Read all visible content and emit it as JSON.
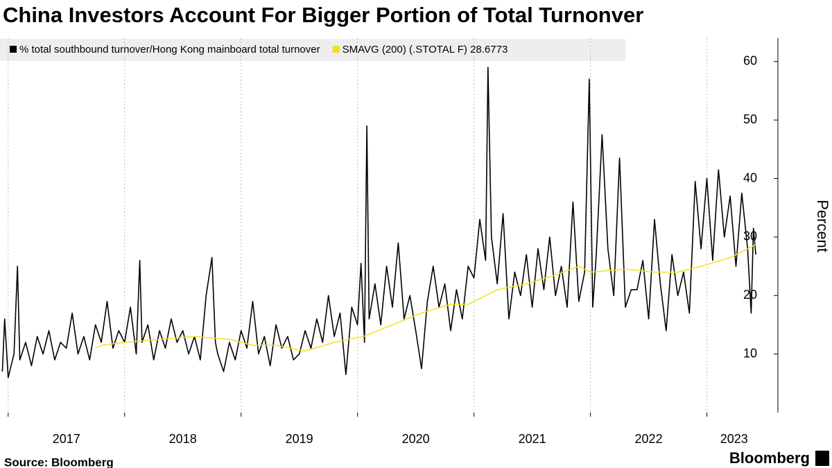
{
  "chart_data": {
    "type": "line",
    "title": "China Investors Account For Bigger Portion of Total Turnonver",
    "ylabel": "Percent",
    "source": "Source: Bloomberg",
    "brand": "Bloomberg",
    "xlim": [
      2016.93,
      2023.61
    ],
    "xticks": [
      {
        "value": 2017,
        "label": "2017"
      },
      {
        "value": 2018,
        "label": "2018"
      },
      {
        "value": 2019,
        "label": "2019"
      },
      {
        "value": 2020,
        "label": "2020"
      },
      {
        "value": 2021,
        "label": "2021"
      },
      {
        "value": 2022,
        "label": "2022"
      },
      {
        "value": 2023,
        "label": "2023"
      }
    ],
    "ylim": [
      0,
      64
    ],
    "yticks": [
      10,
      20,
      30,
      40,
      50,
      60
    ],
    "grid": true,
    "series": [
      {
        "name": "% total southbound turnover/Hong Kong mainboard total turnover",
        "color": "#000000",
        "x": [
          2016.95,
          2016.97,
          2017.0,
          2017.05,
          2017.08,
          2017.1,
          2017.15,
          2017.2,
          2017.25,
          2017.3,
          2017.35,
          2017.4,
          2017.45,
          2017.5,
          2017.55,
          2017.6,
          2017.65,
          2017.7,
          2017.75,
          2017.8,
          2017.85,
          2017.9,
          2017.95,
          2018.0,
          2018.05,
          2018.1,
          2018.13,
          2018.15,
          2018.2,
          2018.25,
          2018.3,
          2018.35,
          2018.4,
          2018.45,
          2018.5,
          2018.55,
          2018.6,
          2018.65,
          2018.7,
          2018.75,
          2018.78,
          2018.8,
          2018.85,
          2018.9,
          2018.95,
          2019.0,
          2019.05,
          2019.1,
          2019.15,
          2019.2,
          2019.25,
          2019.3,
          2019.35,
          2019.4,
          2019.45,
          2019.5,
          2019.55,
          2019.6,
          2019.65,
          2019.7,
          2019.75,
          2019.8,
          2019.85,
          2019.9,
          2019.95,
          2020.0,
          2020.03,
          2020.06,
          2020.08,
          2020.1,
          2020.15,
          2020.2,
          2020.25,
          2020.3,
          2020.35,
          2020.4,
          2020.45,
          2020.5,
          2020.55,
          2020.6,
          2020.65,
          2020.7,
          2020.75,
          2020.8,
          2020.85,
          2020.9,
          2020.95,
          2021.0,
          2021.05,
          2021.1,
          2021.12,
          2021.15,
          2021.2,
          2021.25,
          2021.3,
          2021.35,
          2021.4,
          2021.45,
          2021.5,
          2021.55,
          2021.6,
          2021.65,
          2021.7,
          2021.75,
          2021.8,
          2021.85,
          2021.9,
          2021.95,
          2021.99,
          2022.02,
          2022.05,
          2022.1,
          2022.15,
          2022.2,
          2022.25,
          2022.3,
          2022.35,
          2022.4,
          2022.45,
          2022.5,
          2022.55,
          2022.6,
          2022.65,
          2022.7,
          2022.75,
          2022.8,
          2022.85,
          2022.9,
          2022.95,
          2023.0,
          2023.05,
          2023.1,
          2023.15,
          2023.2,
          2023.25,
          2023.3,
          2023.35,
          2023.38,
          2023.4,
          2023.42
        ],
        "values": [
          7,
          16,
          6,
          10,
          25,
          9,
          12,
          8,
          13,
          10,
          14,
          9,
          12,
          11,
          17,
          10,
          13,
          9,
          15,
          12,
          19,
          11,
          14,
          12,
          18,
          10,
          26,
          12,
          15,
          9,
          14,
          11,
          16,
          12,
          14,
          10,
          13,
          9,
          20,
          26.5,
          12,
          10,
          7,
          12,
          9,
          14,
          11,
          19,
          10,
          13,
          8,
          15,
          11,
          13,
          9,
          10,
          14,
          11,
          16,
          12,
          20,
          13,
          17,
          6.5,
          18,
          15,
          25.5,
          12,
          49,
          16,
          22,
          15,
          25,
          18,
          29,
          16,
          20,
          14,
          7.5,
          19,
          25,
          18,
          22,
          14,
          21,
          16,
          25,
          23,
          33,
          26,
          59,
          30,
          22,
          34,
          16,
          24,
          20,
          27,
          18,
          28,
          21,
          30,
          20,
          25,
          18,
          36,
          19,
          24,
          57,
          18,
          27,
          47.5,
          28,
          20,
          43.5,
          18,
          21,
          21,
          26,
          16,
          33,
          22,
          14,
          27,
          20,
          24,
          17,
          39.5,
          28,
          40,
          26,
          41.5,
          30,
          37,
          25,
          37.5,
          28,
          17,
          31.5,
          27
        ]
      },
      {
        "name": "SMAVG (200) (.STOTAL F) 28.6773",
        "color": "#f0e11e",
        "x": [
          2017.75,
          2017.8,
          2018.0,
          2018.3,
          2018.6,
          2018.9,
          2019.1,
          2019.3,
          2019.55,
          2019.8,
          2020.05,
          2020.3,
          2020.55,
          2020.8,
          2020.95,
          2021.2,
          2021.45,
          2021.7,
          2021.9,
          2022.0,
          2022.3,
          2022.55,
          2022.75,
          2022.95,
          2023.2,
          2023.42
        ],
        "values": [
          11,
          11.5,
          12,
          12.5,
          13,
          12.5,
          11.5,
          11.5,
          10.5,
          12,
          13,
          15,
          17,
          18.5,
          18.5,
          21,
          22,
          23.5,
          25,
          24,
          24.5,
          24,
          24,
          25,
          26.5,
          28.7
        ]
      }
    ]
  }
}
